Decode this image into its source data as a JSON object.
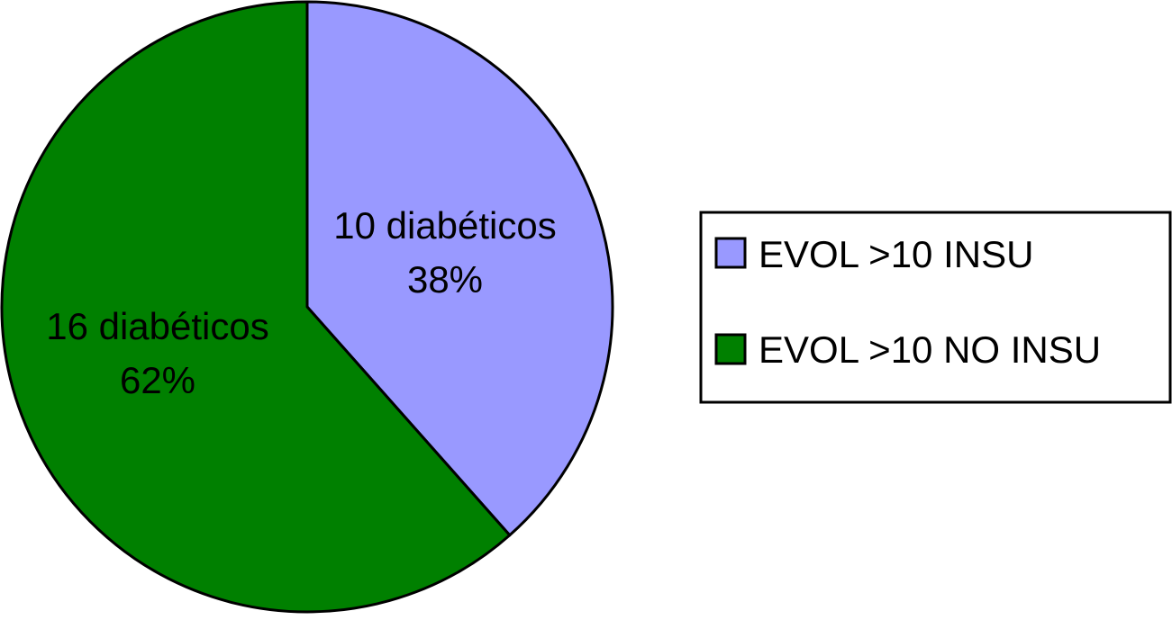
{
  "chart_data": {
    "type": "pie",
    "title": "",
    "categories": [
      "EVOL >10 INSU",
      "EVOL >10 NO INSU"
    ],
    "values": [
      10,
      16
    ],
    "percent_labels": [
      "38%",
      "62%"
    ],
    "slice_labels": [
      "10 diabéticos",
      "16 diabéticos"
    ],
    "colors": [
      "#9999ff",
      "#008000"
    ],
    "start_angle_deg": 0,
    "direction": "clockwise",
    "legend": {
      "position": "right",
      "entries": [
        "EVOL >10 INSU",
        "EVOL >10 NO INSU"
      ]
    }
  }
}
